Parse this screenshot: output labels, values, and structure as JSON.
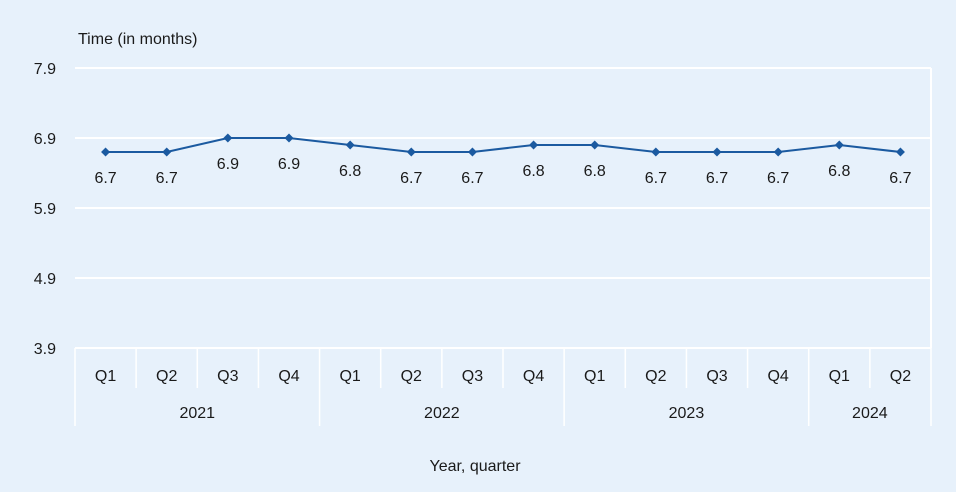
{
  "chart_data": {
    "type": "line",
    "ylabel": "Time (in months)",
    "xlabel": "Year, quarter",
    "ylim": [
      3.9,
      7.9
    ],
    "yticks": [
      "7.9",
      "6.9",
      "5.9",
      "4.9",
      "3.9"
    ],
    "categories": [
      "Q1",
      "Q2",
      "Q3",
      "Q4",
      "Q1",
      "Q2",
      "Q3",
      "Q4",
      "Q1",
      "Q2",
      "Q3",
      "Q4",
      "Q1",
      "Q2"
    ],
    "groups": [
      {
        "label": "2021",
        "count": 4
      },
      {
        "label": "2022",
        "count": 4
      },
      {
        "label": "2023",
        "count": 4
      },
      {
        "label": "2024",
        "count": 2
      }
    ],
    "series": [
      {
        "values": [
          6.7,
          6.7,
          6.9,
          6.9,
          6.8,
          6.7,
          6.7,
          6.8,
          6.8,
          6.7,
          6.7,
          6.7,
          6.8,
          6.7
        ]
      }
    ],
    "data_labels": [
      "6.7",
      "6.7",
      "6.9",
      "6.9",
      "6.8",
      "6.7",
      "6.7",
      "6.8",
      "6.8",
      "6.7",
      "6.7",
      "6.7",
      "6.8",
      "6.7"
    ],
    "grid": true,
    "colors": {
      "line": "#1b5aa0",
      "grid": "#ffffff",
      "background": "#e7f1fb"
    }
  }
}
